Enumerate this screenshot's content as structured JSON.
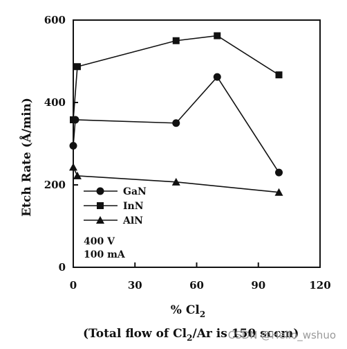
{
  "chart_data": {
    "type": "line",
    "xlabel": "% Cl2",
    "ylabel": "Etch Rate (Å/min)",
    "caption": "(Total flow of Cl2/Ar is 150 sccm)",
    "xlim": [
      0,
      120
    ],
    "ylim": [
      0,
      600
    ],
    "x_ticks": [
      0,
      30,
      60,
      90,
      120
    ],
    "y_ticks": [
      0,
      200,
      400,
      600
    ],
    "grid": false,
    "legend_placement": "bottom-left",
    "series": [
      {
        "name": "GaN",
        "marker": "circle",
        "points": [
          [
            0,
            295
          ],
          [
            1,
            358
          ],
          [
            50,
            350
          ],
          [
            70,
            462
          ],
          [
            100,
            230
          ]
        ]
      },
      {
        "name": "InN",
        "marker": "square",
        "points": [
          [
            0,
            358
          ],
          [
            2,
            487
          ],
          [
            50,
            550
          ],
          [
            70,
            562
          ],
          [
            100,
            467
          ]
        ]
      },
      {
        "name": "AlN",
        "marker": "triangle",
        "points": [
          [
            0,
            243
          ],
          [
            2,
            222
          ],
          [
            50,
            207
          ],
          [
            100,
            182
          ]
        ]
      }
    ],
    "annotations": [
      "400 V",
      "100 mA"
    ]
  },
  "watermark": "CSDN @Hello_wshuo"
}
